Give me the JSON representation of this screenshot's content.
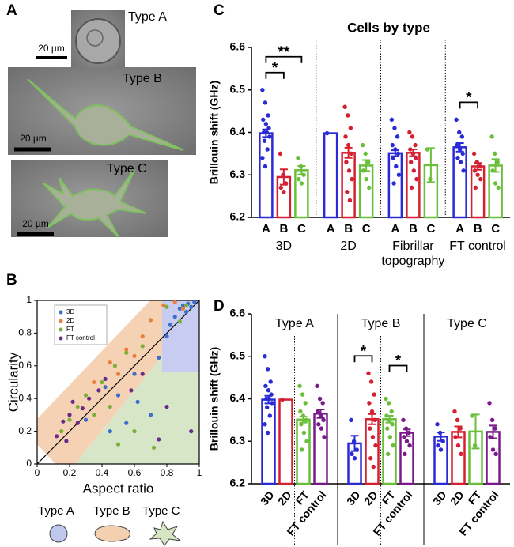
{
  "panel_labels": [
    "A",
    "B",
    "C",
    "D"
  ],
  "panel_a": {
    "images": [
      {
        "label": "Type A",
        "scale_bar": "20 µm"
      },
      {
        "label": "Type B",
        "scale_bar": "20 µm"
      },
      {
        "label": "Type C",
        "scale_bar": "20 µm"
      }
    ]
  },
  "shape_key": [
    "Type A",
    "Type B",
    "Type C"
  ],
  "chart_data": [
    {
      "type": "scatter",
      "xlabel": "Aspect ratio",
      "ylabel": "Circularity",
      "xlim": [
        0,
        1
      ],
      "ylim": [
        0,
        1
      ],
      "xticks": [
        0,
        0.2,
        0.4,
        0.6,
        0.8,
        1
      ],
      "yticks": [
        0,
        0.2,
        0.4,
        0.6,
        0.8,
        1
      ],
      "legend": "upper left",
      "series": [
        {
          "name": "3D",
          "color": "#3b6fc9",
          "x": [
            0.93,
            0.9,
            0.88,
            0.95,
            0.85,
            0.82,
            0.8,
            0.92,
            0.75,
            0.6,
            0.5,
            0.62,
            0.7,
            0.55,
            0.42,
            0.3,
            0.45,
            0.97
          ],
          "values": [
            0.98,
            0.97,
            0.95,
            0.96,
            0.9,
            0.85,
            0.78,
            0.93,
            0.65,
            0.55,
            0.42,
            0.38,
            0.3,
            0.25,
            0.47,
            0.27,
            0.2,
            0.99
          ]
        },
        {
          "name": "2D",
          "color": "#e8803c",
          "x": [
            0.78,
            0.85,
            0.7,
            0.65,
            0.9,
            0.55,
            0.35,
            0.5,
            0.45,
            0.6
          ],
          "values": [
            0.97,
            0.99,
            0.88,
            0.78,
            0.95,
            0.7,
            0.5,
            0.55,
            0.62,
            0.66
          ]
        },
        {
          "name": "FT",
          "color": "#7ab03a",
          "x": [
            0.15,
            0.2,
            0.25,
            0.3,
            0.4,
            0.48,
            0.55,
            0.65,
            0.8,
            0.88,
            0.92,
            0.35,
            0.45,
            0.6,
            0.72,
            0.5
          ],
          "values": [
            0.2,
            0.27,
            0.35,
            0.42,
            0.5,
            0.6,
            0.68,
            0.72,
            0.96,
            0.87,
            0.97,
            0.3,
            0.35,
            0.2,
            0.1,
            0.12
          ]
        },
        {
          "name": "FT control",
          "color": "#6a2a8a",
          "x": [
            0.12,
            0.16,
            0.2,
            0.22,
            0.28,
            0.32,
            0.38,
            0.42,
            0.25,
            0.18,
            0.65,
            0.8,
            0.95,
            0.75,
            0.58
          ],
          "values": [
            0.17,
            0.26,
            0.3,
            0.38,
            0.34,
            0.4,
            0.45,
            0.52,
            0.25,
            0.14,
            0.55,
            0.35,
            0.2,
            0.15,
            0.45
          ]
        }
      ]
    },
    {
      "type": "bar",
      "title": "Cells by type",
      "ylabel": "Brillouin shift  (GHz)",
      "ylim": [
        6.2,
        6.6
      ],
      "yticks": [
        6.2,
        6.3,
        6.4,
        6.5,
        6.6
      ],
      "categories": [
        "A",
        "B",
        "C"
      ],
      "colors": [
        "#2a2ad6",
        "#d42030",
        "#6abf3a"
      ],
      "group_label_position": "bottom",
      "group_divider": "dotted",
      "groups": [
        {
          "name": "3D",
          "values": [
            6.398,
            6.295,
            6.311
          ],
          "errors": [
            0.009,
            0.018,
            0.01
          ],
          "points": [
            [
              6.5,
              6.47,
              6.44,
              6.43,
              6.42,
              6.41,
              6.4,
              6.4,
              6.39,
              6.38,
              6.36,
              6.34,
              6.32
            ],
            [
              6.35,
              6.3,
              6.28,
              6.27,
              6.26
            ],
            [
              6.34,
              6.32,
              6.3,
              6.29,
              6.28
            ]
          ]
        },
        {
          "name": "2D",
          "values": [
            6.398,
            6.352,
            6.322
          ],
          "errors": [
            null,
            0.012,
            0.013
          ],
          "points": [
            [
              6.398
            ],
            [
              6.46,
              6.44,
              6.41,
              6.39,
              6.37,
              6.35,
              6.33,
              6.31,
              6.29,
              6.26,
              6.24
            ],
            [
              6.37,
              6.35,
              6.33,
              6.31,
              6.29,
              6.27
            ]
          ]
        },
        {
          "name": "Fibrillar topography",
          "values": [
            6.351,
            6.352,
            6.323
          ],
          "errors": [
            0.007,
            0.008,
            0.04
          ],
          "points": [
            [
              6.43,
              6.41,
              6.39,
              6.37,
              6.36,
              6.35,
              6.34,
              6.32,
              6.3,
              6.28
            ],
            [
              6.4,
              6.39,
              6.37,
              6.36,
              6.35,
              6.34,
              6.33,
              6.31,
              6.29,
              6.27
            ],
            [
              6.36,
              6.29
            ]
          ]
        },
        {
          "name": "FT control",
          "values": [
            6.365,
            6.32,
            6.322
          ],
          "errors": [
            0.01,
            0.008,
            0.015
          ],
          "points": [
            [
              6.43,
              6.4,
              6.39,
              6.37,
              6.36,
              6.35,
              6.34,
              6.33,
              6.31
            ],
            [
              6.35,
              6.33,
              6.32,
              6.31,
              6.3,
              6.29,
              6.27
            ],
            [
              6.39,
              6.35,
              6.33,
              6.31,
              6.28,
              6.27
            ]
          ]
        }
      ],
      "annotations": [
        {
          "group": "3D",
          "between": [
            "A",
            "B"
          ],
          "label": "*"
        },
        {
          "group": "3D",
          "between": [
            "A",
            "C"
          ],
          "label": "**"
        },
        {
          "group": "FT control",
          "between": [
            "A",
            "B"
          ],
          "label": "*"
        }
      ]
    },
    {
      "type": "bar",
      "ylabel": "Brillouin shift  (GHz)",
      "ylim": [
        6.2,
        6.6
      ],
      "yticks": [
        6.2,
        6.3,
        6.4,
        6.5,
        6.6
      ],
      "categories": [
        "3D",
        "2D",
        "FT",
        "FT control"
      ],
      "colors": [
        "#2a2ad6",
        "#d42030",
        "#6abf3a",
        "#7a1a8a"
      ],
      "group_label_position": "top",
      "group_divider": "solid",
      "subgroup_divider": "dotted",
      "groups": [
        {
          "name": "Type A",
          "values": [
            6.398,
            6.398,
            6.351,
            6.365
          ],
          "errors": [
            0.009,
            null,
            0.007,
            0.01
          ],
          "points": [
            [
              6.5,
              6.47,
              6.44,
              6.43,
              6.42,
              6.41,
              6.4,
              6.4,
              6.39,
              6.38,
              6.36,
              6.34,
              6.32
            ],
            [
              6.398
            ],
            [
              6.43,
              6.41,
              6.39,
              6.37,
              6.36,
              6.35,
              6.34,
              6.32,
              6.3,
              6.28
            ],
            [
              6.43,
              6.4,
              6.39,
              6.37,
              6.36,
              6.35,
              6.34,
              6.33,
              6.31
            ]
          ]
        },
        {
          "name": "Type B",
          "values": [
            6.295,
            6.352,
            6.352,
            6.32
          ],
          "errors": [
            0.018,
            0.012,
            0.008,
            0.008
          ],
          "points": [
            [
              6.35,
              6.3,
              6.28,
              6.27,
              6.26
            ],
            [
              6.46,
              6.44,
              6.41,
              6.39,
              6.37,
              6.35,
              6.33,
              6.31,
              6.29,
              6.26,
              6.24
            ],
            [
              6.4,
              6.39,
              6.37,
              6.36,
              6.35,
              6.34,
              6.33,
              6.31,
              6.29,
              6.27
            ],
            [
              6.35,
              6.33,
              6.32,
              6.31,
              6.3,
              6.29,
              6.27
            ]
          ]
        },
        {
          "name": "Type C",
          "values": [
            6.311,
            6.322,
            6.323,
            6.322
          ],
          "errors": [
            0.01,
            0.013,
            0.04,
            0.015
          ],
          "points": [
            [
              6.34,
              6.32,
              6.3,
              6.29,
              6.28
            ],
            [
              6.37,
              6.35,
              6.33,
              6.31,
              6.29,
              6.27
            ],
            [
              6.36,
              6.29
            ],
            [
              6.39,
              6.35,
              6.33,
              6.31,
              6.28,
              6.27
            ]
          ]
        }
      ],
      "annotations": [
        {
          "group": "Type B",
          "between": [
            "3D",
            "2D"
          ],
          "label": "*"
        },
        {
          "group": "Type B",
          "between": [
            "FT",
            "FT control"
          ],
          "label": "*"
        }
      ]
    }
  ]
}
